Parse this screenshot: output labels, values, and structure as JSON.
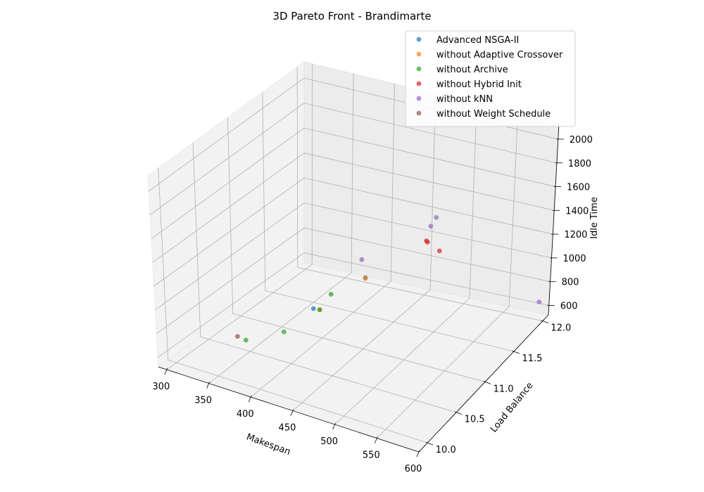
{
  "chart_data": {
    "type": "scatter",
    "projection": "3d",
    "title": "3D Pareto Front - Brandimarte",
    "xlabel": "Makespan",
    "ylabel": "Load Balance",
    "zlabel": "Idle Time",
    "xlim": [
      290,
      600
    ],
    "ylim": [
      9.85,
      12.1
    ],
    "zlim": [
      520,
      2130
    ],
    "xticks": [
      "300",
      "350",
      "400",
      "450",
      "500",
      "550",
      "600"
    ],
    "yticks": [
      "10.0",
      "10.5",
      "11.0",
      "11.5",
      "12.0"
    ],
    "zticks": [
      "600",
      "800",
      "1000",
      "1200",
      "1400",
      "1600",
      "1800",
      "2000"
    ],
    "grid": true,
    "legend_position": "top-right",
    "series": [
      {
        "name": "Advanced NSGA-II",
        "color": "#1f77b4",
        "points": [
          [
            380,
            11.12,
            680
          ],
          [
            385,
            11.88,
            620
          ]
        ]
      },
      {
        "name": "without Adaptive Crossover",
        "color": "#ff7f0e",
        "points": [
          [
            383,
            11.18,
            650
          ],
          [
            385,
            11.88,
            615
          ]
        ]
      },
      {
        "name": "without Archive",
        "color": "#2ca02c",
        "points": [
          [
            355,
            10.38,
            680
          ],
          [
            370,
            10.78,
            610
          ],
          [
            380,
            11.4,
            680
          ],
          [
            383,
            11.18,
            650
          ]
        ]
      },
      {
        "name": "without Hybrid Init",
        "color": "#d62728",
        "points": [
          [
            455,
            11.95,
            1000
          ],
          [
            455,
            11.97,
            980
          ],
          [
            470,
            11.97,
            930
          ]
        ]
      },
      {
        "name": "without kNN",
        "color": "#9467bd",
        "points": [
          [
            410,
            11.5,
            980
          ],
          [
            460,
            11.95,
            1130
          ],
          [
            465,
            11.97,
            1200
          ],
          [
            595,
            11.99,
            680
          ]
        ]
      },
      {
        "name": "without Weight Schedule",
        "color": "#8c564b",
        "points": [
          [
            345,
            10.38,
            690
          ]
        ]
      }
    ]
  }
}
